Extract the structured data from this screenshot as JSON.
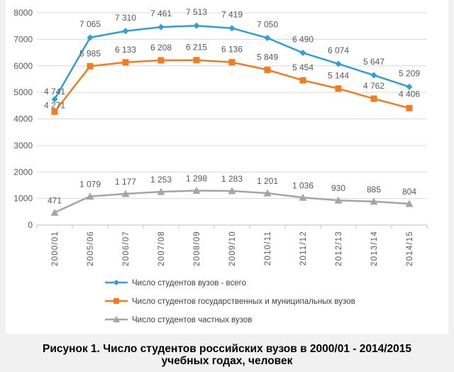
{
  "chart_data": {
    "type": "line",
    "categories": [
      "2000/01",
      "2005/06",
      "2006/07",
      "2007/08",
      "2008/09",
      "2009/10",
      "2010/11",
      "2011/12",
      "2012/13",
      "2013/14",
      "2014/15"
    ],
    "ylim": [
      0,
      8000
    ],
    "yticks": [
      0,
      1000,
      2000,
      3000,
      4000,
      5000,
      6000,
      7000,
      8000
    ],
    "grid": true,
    "legend_position": "bottom",
    "series": [
      {
        "name": "Число студентов вузов - всего",
        "color": "#2e9fd8",
        "marker": "diamond",
        "values": [
          4741,
          7065,
          7310,
          7461,
          7513,
          7419,
          7050,
          6490,
          6074,
          5647,
          5209
        ],
        "labels": [
          "4 741",
          "7 065",
          "7 310",
          "7 461",
          "7 513",
          "7 419",
          "7 050",
          "6 490",
          "6 074",
          "5 647",
          "5 209"
        ]
      },
      {
        "name": "Число студентов государственных и муниципальных  вузов",
        "color": "#f47b20",
        "marker": "square",
        "values": [
          4271,
          5985,
          6133,
          6208,
          6215,
          6136,
          5849,
          5454,
          5144,
          4762,
          4406
        ],
        "labels": [
          "4 271",
          "5 985",
          "6 133",
          "6 208",
          "6 215",
          "6 136",
          "5 849",
          "5 454",
          "5 144",
          "4 762",
          "4 406"
        ]
      },
      {
        "name": "Число студентов частных вузов",
        "color": "#a5a5a5",
        "marker": "triangle",
        "values": [
          471,
          1079,
          1177,
          1253,
          1298,
          1283,
          1201,
          1036,
          930,
          885,
          804
        ],
        "labels": [
          "471",
          "1 079",
          "1 177",
          "1 253",
          "1 298",
          "1 283",
          "1 201",
          "1 036",
          "930",
          "885",
          "804"
        ]
      }
    ]
  },
  "caption": {
    "line1": "Рисунок 1. Число студентов российских вузов в 2000/01 - 2014/2015",
    "line2": "учебных годах, человек"
  }
}
